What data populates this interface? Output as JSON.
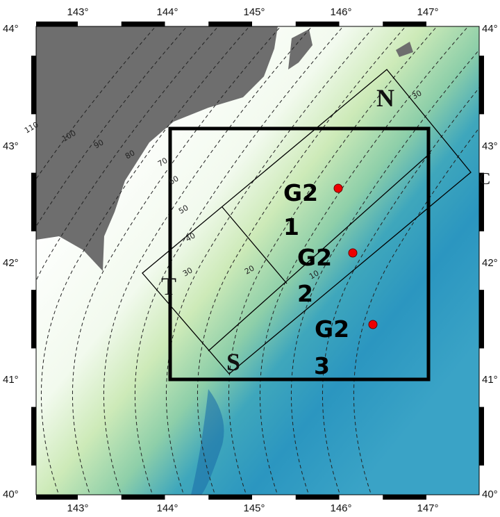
{
  "map": {
    "longitude_labels": [
      "143°",
      "144°",
      "145°",
      "146°",
      "147°"
    ],
    "latitude_labels": [
      "44°",
      "43°",
      "42°",
      "41°",
      "40°"
    ],
    "contour_labels": [
      "110",
      "100",
      "90",
      "80",
      "70",
      "60",
      "50",
      "40",
      "30",
      "20",
      "10",
      "30"
    ],
    "corner_labels": {
      "north": "N",
      "south": "S",
      "west": "T",
      "east": "C"
    },
    "stations": [
      {
        "name": "G2",
        "number": "1"
      },
      {
        "name": "G2",
        "number": "2"
      },
      {
        "name": "G2",
        "number": "3"
      }
    ]
  }
}
